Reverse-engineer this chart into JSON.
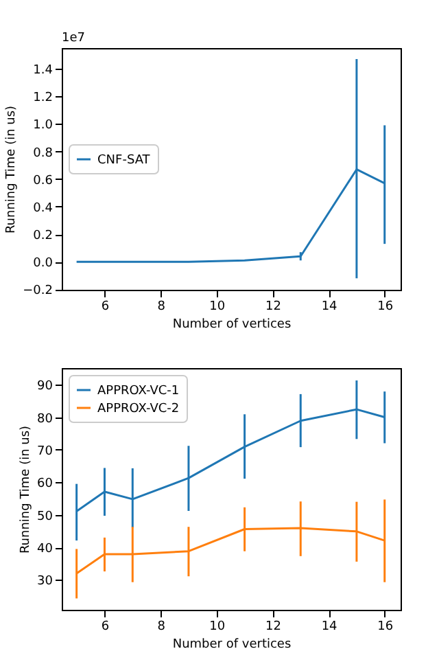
{
  "chart_data": [
    {
      "type": "line",
      "xlabel": "Number of vertices",
      "ylabel": "Running Time (in us)",
      "annotations": [
        "1e7"
      ],
      "x": [
        5,
        6,
        7,
        9,
        11,
        13,
        15,
        16
      ],
      "series": [
        {
          "name": "CNF-SAT",
          "color": "#1f77b4",
          "values": [
            0,
            0,
            0,
            0,
            0.01,
            0.04,
            0.67,
            0.57
          ],
          "errors": [
            null,
            null,
            null,
            null,
            null,
            [
              0.01,
              0.07
            ],
            [
              -0.12,
              1.47
            ],
            [
              0.13,
              0.99
            ]
          ]
        }
      ],
      "xlim": [
        4.47,
        16.57
      ],
      "ylim": [
        -0.203,
        1.55
      ],
      "xticks": [
        6,
        8,
        10,
        12,
        14,
        16
      ],
      "yticks": [
        {
          "value": -0.2,
          "label": "−0.2"
        },
        {
          "value": 0,
          "label": "0.0"
        },
        {
          "value": 0.2,
          "label": "0.2"
        },
        {
          "value": 0.4,
          "label": "0.4"
        },
        {
          "value": 0.6,
          "label": "0.6"
        },
        {
          "value": 0.8,
          "label": "0.8"
        },
        {
          "value": 1.0,
          "label": "1.0"
        },
        {
          "value": 1.2,
          "label": "1.2"
        },
        {
          "value": 1.4,
          "label": "1.4"
        }
      ],
      "legend": "left",
      "grid": false
    },
    {
      "type": "line",
      "xlabel": "Number of vertices",
      "ylabel": "Running Time (in us)",
      "x": [
        5,
        6,
        7,
        9,
        11,
        13,
        15,
        16
      ],
      "series": [
        {
          "name": "APPROX-VC-1",
          "color": "#1f77b4",
          "values": [
            51.1,
            57.1,
            54.8,
            61.3,
            70.9,
            78.9,
            82.4,
            80
          ],
          "errors": [
            [
              42.1,
              59.5
            ],
            [
              49.7,
              64.4
            ],
            [
              46.1,
              64.3
            ],
            [
              51.2,
              71.2
            ],
            [
              61.1,
              80.9
            ],
            [
              70.8,
              87.1
            ],
            [
              73.3,
              91.3
            ],
            [
              72,
              87.9
            ]
          ]
        },
        {
          "name": "APPROX-VC-2",
          "color": "#ff7f0e",
          "values": [
            32,
            37.9,
            37.9,
            38.8,
            45.6,
            45.9,
            44.9,
            42.1
          ],
          "errors": [
            [
              24.3,
              39.5
            ],
            [
              32.6,
              43
            ],
            [
              29.3,
              46.3
            ],
            [
              31.1,
              46.3
            ],
            [
              38.8,
              52.3
            ],
            [
              37.3,
              54.1
            ],
            [
              35.6,
              54
            ],
            [
              29.3,
              54.7
            ]
          ]
        }
      ],
      "xlim": [
        4.47,
        16.57
      ],
      "ylim": [
        20.8,
        95.1
      ],
      "xticks": [
        6,
        8,
        10,
        12,
        14,
        16
      ],
      "yticks": [
        30,
        40,
        50,
        60,
        70,
        80,
        90
      ],
      "legend": "top left",
      "grid": false
    }
  ]
}
